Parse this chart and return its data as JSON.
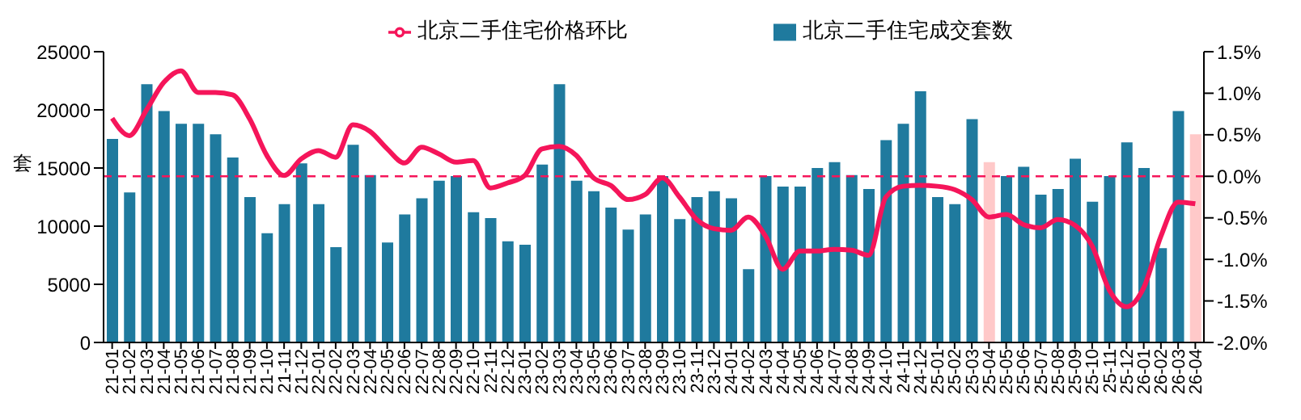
{
  "chart_data": {
    "type": "bar",
    "categories": [
      "21-01",
      "21-02",
      "21-03",
      "21-04",
      "21-05",
      "21-06",
      "21-07",
      "21-08",
      "21-09",
      "21-10",
      "21-11",
      "21-12",
      "22-01",
      "22-02",
      "22-03",
      "22-04",
      "22-05",
      "22-06",
      "22-07",
      "22-08",
      "22-09",
      "22-10",
      "22-11",
      "22-12",
      "23-01",
      "23-02",
      "23-03",
      "23-04",
      "23-05",
      "23-06",
      "23-07",
      "23-08",
      "23-09",
      "23-10",
      "23-11",
      "23-12",
      "24-01",
      "24-02",
      "24-03",
      "24-04",
      "24-05",
      "24-06",
      "24-07",
      "24-08",
      "24-09",
      "24-10",
      "24-11",
      "24-12",
      "25-01",
      "25-02",
      "25-03",
      "25-04",
      "25-05",
      "25-06",
      "25-07",
      "25-08",
      "25-09",
      "25-10",
      "25-11",
      "25-12",
      "26-01",
      "26-02",
      "26-03",
      "26-04"
    ],
    "series": [
      {
        "name": "北京二手住宅成交套数",
        "color": "#1f7a9e",
        "colors": [
          "#1f7a9e",
          "#1f7a9e",
          "#1f7a9e",
          "#1f7a9e",
          "#1f7a9e",
          "#1f7a9e",
          "#1f7a9e",
          "#1f7a9e",
          "#1f7a9e",
          "#1f7a9e",
          "#1f7a9e",
          "#1f7a9e",
          "#1f7a9e",
          "#1f7a9e",
          "#1f7a9e",
          "#1f7a9e",
          "#1f7a9e",
          "#1f7a9e",
          "#1f7a9e",
          "#1f7a9e",
          "#1f7a9e",
          "#1f7a9e",
          "#1f7a9e",
          "#1f7a9e",
          "#1f7a9e",
          "#1f7a9e",
          "#1f7a9e",
          "#1f7a9e",
          "#1f7a9e",
          "#1f7a9e",
          "#1f7a9e",
          "#1f7a9e",
          "#1f7a9e",
          "#1f7a9e",
          "#1f7a9e",
          "#1f7a9e",
          "#1f7a9e",
          "#1f7a9e",
          "#1f7a9e",
          "#1f7a9e",
          "#1f7a9e",
          "#1f7a9e",
          "#1f7a9e",
          "#1f7a9e",
          "#1f7a9e",
          "#1f7a9e",
          "#1f7a9e",
          "#1f7a9e",
          "#1f7a9e",
          "#1f7a9e",
          "#1f7a9e",
          "#ffc9c9",
          "#1f7a9e",
          "#1f7a9e",
          "#1f7a9e",
          "#1f7a9e",
          "#1f7a9e",
          "#1f7a9e",
          "#1f7a9e",
          "#1f7a9e",
          "#1f7a9e",
          "#1f7a9e",
          "#1f7a9e",
          "#ffc9c9"
        ],
        "values": [
          17500,
          12900,
          22200,
          19900,
          18800,
          18800,
          17900,
          15900,
          12500,
          9400,
          11900,
          15400,
          11900,
          8200,
          17000,
          14400,
          8600,
          11000,
          12400,
          13900,
          14300,
          11200,
          10700,
          8700,
          8400,
          15300,
          22200,
          13900,
          13000,
          11600,
          9700,
          11000,
          14300,
          10600,
          12500,
          13000,
          12400,
          6300,
          14300,
          13400,
          13400,
          15000,
          15500,
          14400,
          13200,
          17400,
          18800,
          21600,
          12500,
          11900,
          19200,
          15500,
          14300,
          15100,
          12700,
          13200,
          15800,
          12100,
          14300,
          17200,
          15000,
          8100,
          19900,
          17900
        ]
      },
      {
        "name": "北京二手住宅价格环比",
        "type": "line",
        "axis": "y2",
        "color": "#f5155a",
        "marker": "none",
        "values": [
          0.7,
          0.49,
          0.8,
          1.13,
          1.27,
          1.01,
          1.01,
          0.98,
          0.69,
          0.25,
          0.01,
          0.21,
          0.31,
          0.23,
          0.62,
          0.54,
          0.33,
          0.16,
          0.35,
          0.27,
          0.17,
          0.19,
          -0.14,
          -0.08,
          0.01,
          0.33,
          0.36,
          0.25,
          -0.02,
          -0.11,
          -0.28,
          -0.22,
          -0.02,
          -0.25,
          -0.52,
          -0.63,
          -0.65,
          -0.49,
          -0.72,
          -1.12,
          -0.9,
          -0.9,
          -0.88,
          -0.89,
          -0.95,
          -0.25,
          -0.12,
          -0.11,
          -0.12,
          -0.16,
          -0.28,
          -0.49,
          -0.46,
          -0.58,
          -0.62,
          -0.52,
          -0.59,
          -0.84,
          -1.37,
          -1.57,
          -1.34,
          -0.72,
          -0.31,
          -0.33
        ]
      }
    ],
    "ylabel": "套",
    "ylim": [
      0,
      25000
    ],
    "yticks": [
      0,
      5000,
      10000,
      15000,
      20000,
      25000
    ],
    "y2lim": [
      -2.0,
      1.5
    ],
    "y2ticks": [
      {
        "value": -2.0,
        "label": "-2.0%"
      },
      {
        "value": -1.5,
        "label": "-1.5%"
      },
      {
        "value": -1.0,
        "label": "-1.0%"
      },
      {
        "value": -0.5,
        "label": "-0.5%"
      },
      {
        "value": 0,
        "label": "0.0%"
      },
      {
        "value": 0.5,
        "label": "0.5%"
      },
      {
        "value": 1.0,
        "label": "1.0%"
      },
      {
        "value": 1.5,
        "label": "1.5%"
      }
    ],
    "ref_lines": [
      {
        "axis": "y2",
        "value": 0,
        "color": "#f5155a",
        "line_style": "dashed"
      }
    ],
    "legend": "top",
    "grid": false
  }
}
